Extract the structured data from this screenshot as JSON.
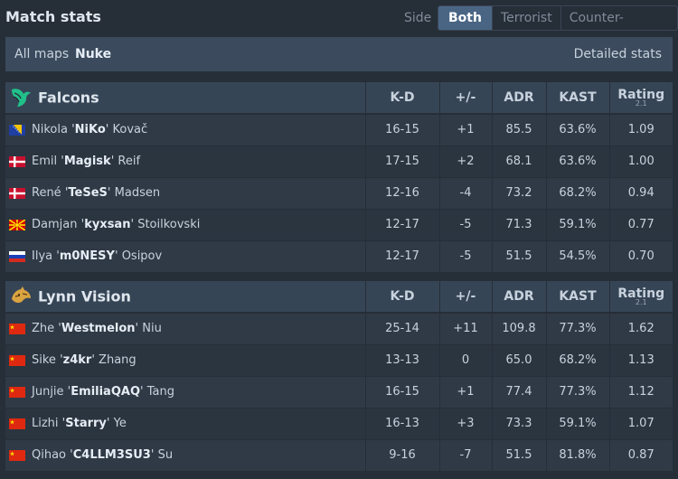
{
  "header": {
    "title": "Match stats",
    "side_label": "Side",
    "side_tabs": [
      {
        "label": "Both",
        "active": true
      },
      {
        "label": "Terrorist",
        "active": false
      },
      {
        "label": "Counter-Terrorist",
        "active": false
      }
    ]
  },
  "maps": {
    "all_label": "All maps",
    "selected": "Nuke",
    "detailed_label": "Detailed stats"
  },
  "columns": {
    "kd": "K-D",
    "pm": "+/-",
    "adr": "ADR",
    "kast": "KAST",
    "rating": "Rating",
    "rating_version": "2.1"
  },
  "teams": [
    {
      "name": "Falcons",
      "logo_icon": "falcons-logo-icon",
      "players": [
        {
          "flag": "BA",
          "first": "Nikola",
          "nick": "NiKo",
          "last": "Kovač",
          "kd": "16-15",
          "pm": "+1",
          "pm_sign": "pos",
          "adr": "85.5",
          "kast": "63.6%",
          "rating": "1.09"
        },
        {
          "flag": "DK",
          "first": "Emil",
          "nick": "Magisk",
          "last": "Reif",
          "kd": "17-15",
          "pm": "+2",
          "pm_sign": "pos",
          "adr": "68.1",
          "kast": "63.6%",
          "rating": "1.00"
        },
        {
          "flag": "DK",
          "first": "René",
          "nick": "TeSeS",
          "last": "Madsen",
          "kd": "12-16",
          "pm": "-4",
          "pm_sign": "neg",
          "adr": "73.2",
          "kast": "68.2%",
          "rating": "0.94"
        },
        {
          "flag": "MK",
          "first": "Damjan",
          "nick": "kyxsan",
          "last": "Stoilkovski",
          "kd": "12-17",
          "pm": "-5",
          "pm_sign": "neg",
          "adr": "71.3",
          "kast": "59.1%",
          "rating": "0.77"
        },
        {
          "flag": "RU",
          "first": "Ilya",
          "nick": "m0NESY",
          "last": "Osipov",
          "kd": "12-17",
          "pm": "-5",
          "pm_sign": "neg",
          "adr": "51.5",
          "kast": "54.5%",
          "rating": "0.70"
        }
      ]
    },
    {
      "name": "Lynn Vision",
      "logo_icon": "lynn-vision-logo-icon",
      "players": [
        {
          "flag": "CN",
          "first": "Zhe",
          "nick": "Westmelon",
          "last": "Niu",
          "kd": "25-14",
          "pm": "+11",
          "pm_sign": "pos",
          "adr": "109.8",
          "kast": "77.3%",
          "rating": "1.62"
        },
        {
          "flag": "CN",
          "first": "Sike",
          "nick": "z4kr",
          "last": "Zhang",
          "kd": "13-13",
          "pm": "0",
          "pm_sign": "zero",
          "adr": "65.0",
          "kast": "68.2%",
          "rating": "1.13"
        },
        {
          "flag": "CN",
          "first": "Junjie",
          "nick": "EmiliaQAQ",
          "last": "Tang",
          "kd": "16-15",
          "pm": "+1",
          "pm_sign": "pos",
          "adr": "77.4",
          "kast": "77.3%",
          "rating": "1.12"
        },
        {
          "flag": "CN",
          "first": "Lizhi",
          "nick": "Starry",
          "last": "Ye",
          "kd": "16-13",
          "pm": "+3",
          "pm_sign": "pos",
          "adr": "73.3",
          "kast": "59.1%",
          "rating": "1.07"
        },
        {
          "flag": "CN",
          "first": "Qihao",
          "nick": "C4LLM3SU3",
          "last": "Su",
          "kd": "9-16",
          "pm": "-7",
          "pm_sign": "neg",
          "adr": "51.5",
          "kast": "81.8%",
          "rating": "0.87"
        }
      ]
    }
  ],
  "colors": {
    "positive": "#4caf50",
    "negative": "#e53935",
    "active_tab": "#4a6584"
  }
}
